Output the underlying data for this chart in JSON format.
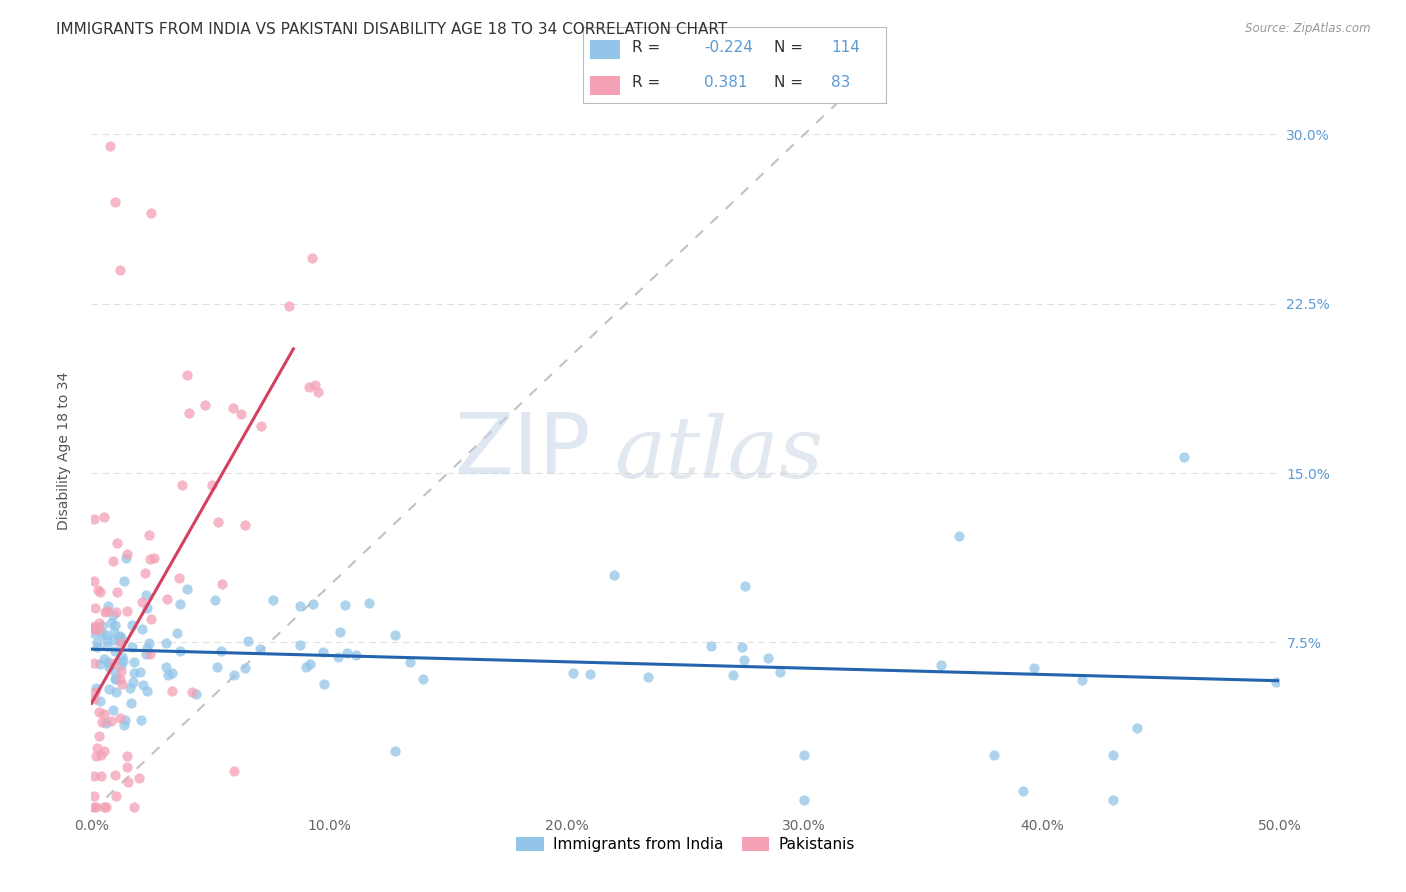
{
  "title": "IMMIGRANTS FROM INDIA VS PAKISTANI DISABILITY AGE 18 TO 34 CORRELATION CHART",
  "source": "Source: ZipAtlas.com",
  "ylabel": "Disability Age 18 to 34",
  "xlim": [
    0.0,
    0.5
  ],
  "ylim": [
    0.0,
    0.32
  ],
  "xticks": [
    0.0,
    0.1,
    0.2,
    0.3,
    0.4,
    0.5
  ],
  "xticklabels": [
    "0.0%",
    "10.0%",
    "20.0%",
    "30.0%",
    "40.0%",
    "50.0%"
  ],
  "yticks": [
    0.0,
    0.075,
    0.15,
    0.225,
    0.3
  ],
  "yticklabels_right": [
    "",
    "7.5%",
    "15.0%",
    "22.5%",
    "30.0%"
  ],
  "india_color": "#92C5E8",
  "pakistan_color": "#F4A0B5",
  "india_trend_color": "#2464AE",
  "pakistan_trend_color": "#D44060",
  "diagonal_color": "#BBBBBB",
  "legend_india_label": "Immigrants from India",
  "legend_pakistan_label": "Pakistanis",
  "india_R": -0.224,
  "india_N": 114,
  "pakistan_R": 0.381,
  "pakistan_N": 83,
  "watermark_zip": "ZIP",
  "watermark_atlas": "atlas",
  "background_color": "#FFFFFF",
  "grid_color": "#DDDDDD",
  "title_fontsize": 11,
  "axis_label_fontsize": 10,
  "tick_fontsize": 10,
  "legend_fontsize": 11,
  "india_trend_x0": 0.0,
  "india_trend_y0": 0.072,
  "india_trend_x1": 0.5,
  "india_trend_y1": 0.058,
  "pak_trend_x0": 0.0,
  "pak_trend_y0": 0.048,
  "pak_trend_x1": 0.085,
  "pak_trend_y1": 0.205
}
